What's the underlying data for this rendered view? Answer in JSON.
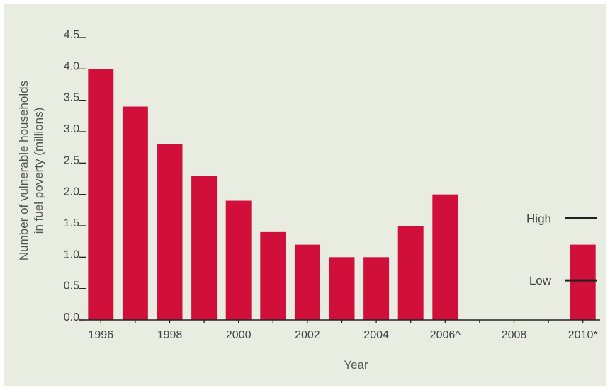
{
  "chart_data": {
    "type": "bar",
    "xlabel": "Year",
    "ylabel_line1": "Number of vulnerable households",
    "ylabel_line2": "in fuel poverty (millions)",
    "ylim": [
      0,
      4.5
    ],
    "yticks": [
      "0.0",
      "0.5",
      "1.0",
      "1.5",
      "2.0",
      "2.5",
      "3.0",
      "3.5",
      "4.0",
      "4.5"
    ],
    "x_tick_labels": [
      "1996",
      "1998",
      "2000",
      "2002",
      "2004",
      "2006^",
      "2008",
      "2010*"
    ],
    "categories": [
      "1996",
      "1997",
      "1998",
      "1999",
      "2000",
      "2001",
      "2002",
      "2003",
      "2004",
      "2005",
      "2006",
      "2007",
      "2008",
      "2009",
      "2010"
    ],
    "values": [
      4.0,
      3.4,
      2.8,
      2.3,
      1.9,
      1.4,
      1.2,
      1.0,
      1.0,
      1.5,
      2.0,
      null,
      null,
      null,
      1.2
    ],
    "bar_color": "#d0103a",
    "annotations": [
      {
        "label": "High",
        "value": 1.62
      },
      {
        "label": "Low",
        "value": 0.63
      }
    ]
  }
}
